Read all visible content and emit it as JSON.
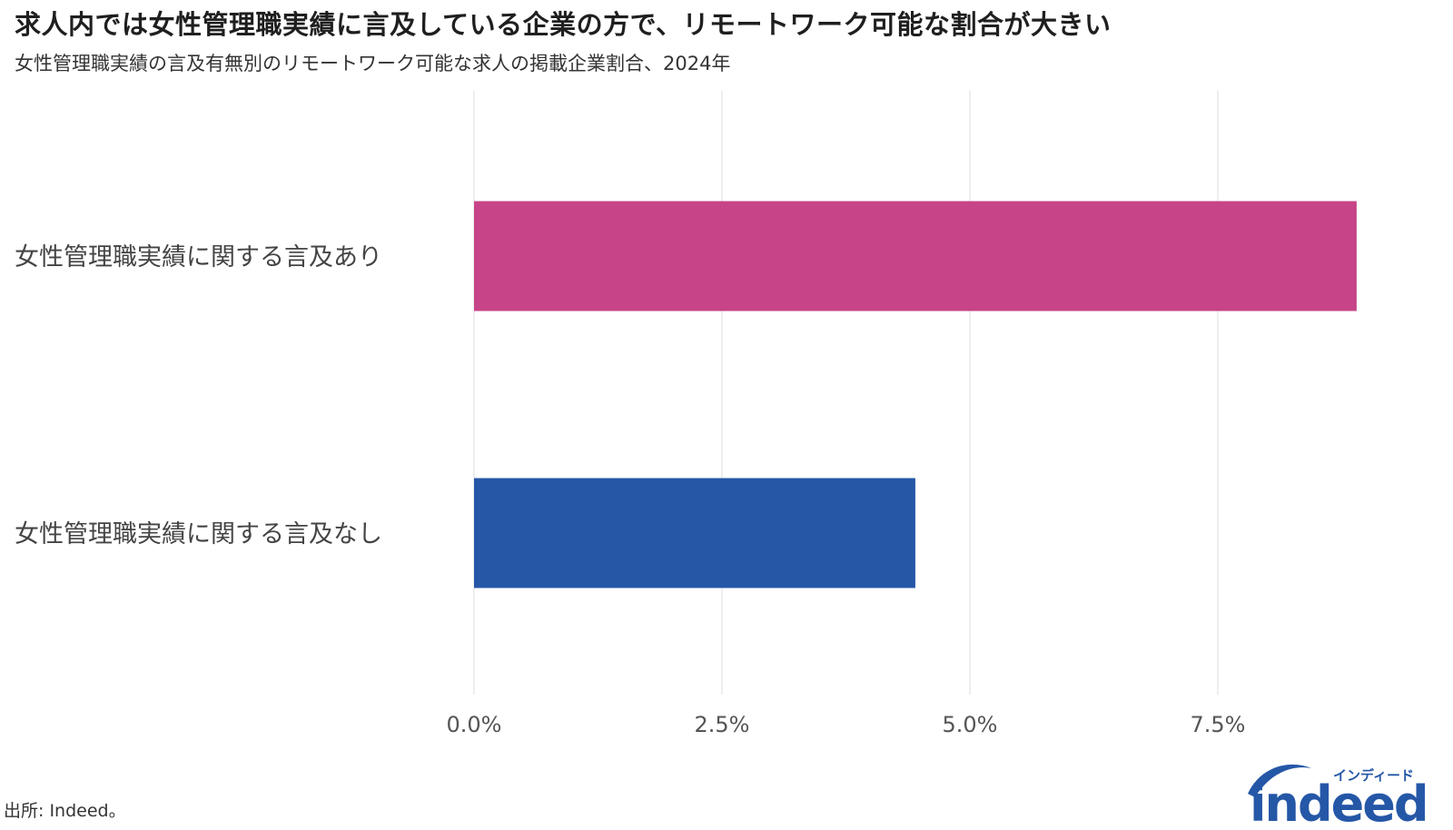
{
  "title": "求人内では女性管理職実績に言及している企業の方で、リモートワーク可能な割合が大きい",
  "subtitle": "女性管理職実績の言及有無別のリモートワーク可能な求人の掲載企業割合、2024年",
  "source": "出所: Indeed。",
  "logo": {
    "main": "indeed",
    "kana": "インディード",
    "color": "#2557a7"
  },
  "chart_data": {
    "type": "bar",
    "orientation": "horizontal",
    "categories": [
      "女性管理職実績に関する言及あり",
      "女性管理職実績に関する言及なし"
    ],
    "values": [
      8.9,
      4.45
    ],
    "colors": [
      "#c64487",
      "#2557a7"
    ],
    "xlim": [
      0,
      9.2
    ],
    "xticks": [
      0,
      2.5,
      5,
      7.5
    ],
    "xtick_labels": [
      "0.0%",
      "2.5%",
      "5.0%",
      "7.5%"
    ],
    "grid": true,
    "xlabel": "",
    "ylabel": ""
  }
}
